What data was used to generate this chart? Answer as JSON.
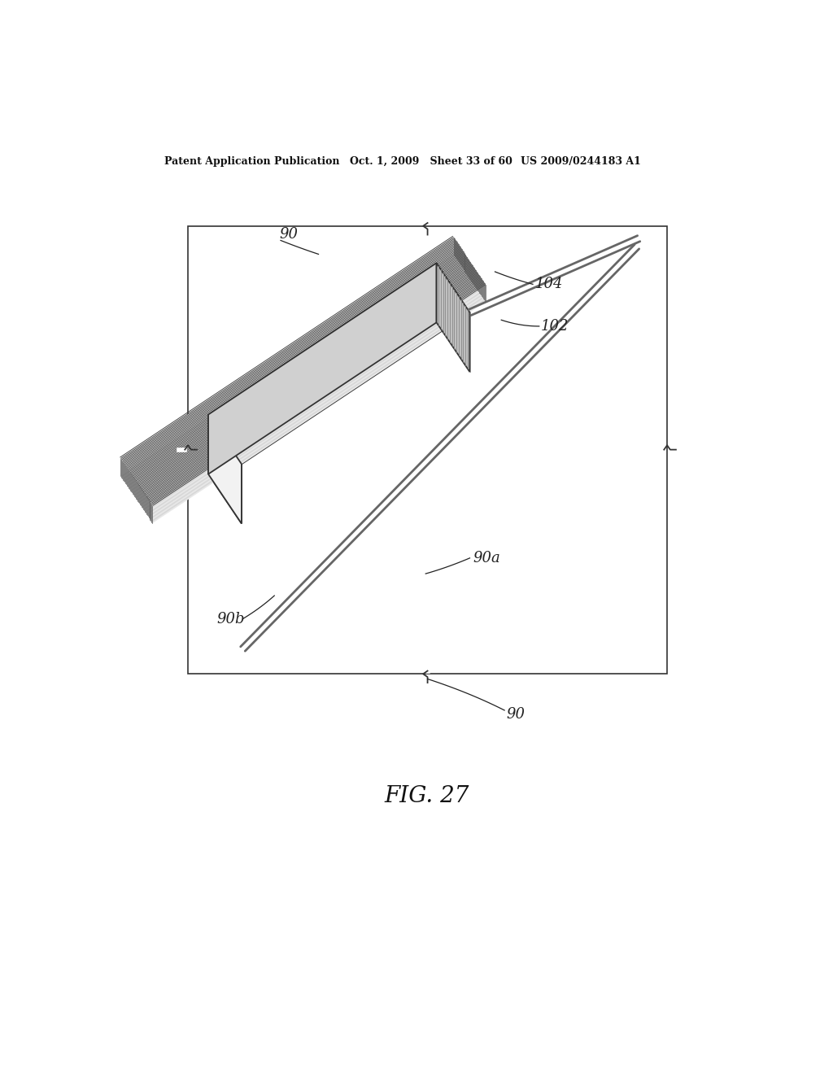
{
  "bg_color": "#ffffff",
  "header_left": "Patent Application Publication",
  "header_mid": "Oct. 1, 2009   Sheet 33 of 60",
  "header_right": "US 2009/0244183 A1",
  "fig_label": "FIG. 27",
  "labels": {
    "90_top": "90",
    "90a": "90a",
    "90b": "90b",
    "102": "102",
    "104": "104",
    "90_bottom": "90"
  },
  "chip_color_top": "#e8e8e8",
  "chip_color_side_right": "#b8b8b8",
  "chip_color_front": "#f0f0f0",
  "chip_edge_color": "#333333",
  "fin_color_light": "#f5f5f5",
  "fin_color_dark": "#cccccc",
  "wire_color": "#666666",
  "label_color": "#222222"
}
